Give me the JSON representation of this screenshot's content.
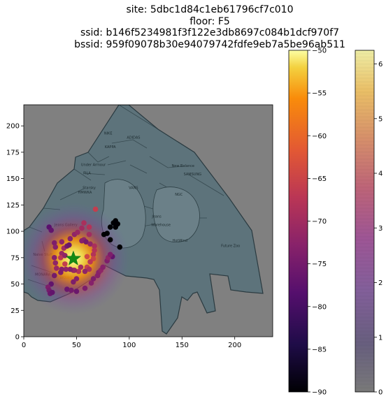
{
  "title_lines": [
    "site: 5dbc1d84c1eb61796cf7c010",
    "floor: F5",
    "ssid: b146f5234981f3f122e3db8697c084b1dcf970f7",
    "bssid: 959f09078b30e94079742fdfe9eb7a5be96ab511"
  ],
  "chart_data": {
    "type": "scatter",
    "xlim": [
      0,
      236
    ],
    "ylim": [
      0,
      220
    ],
    "xticks": [
      0,
      50,
      100,
      150,
      200
    ],
    "yticks": [
      0,
      25,
      50,
      75,
      100,
      125,
      150,
      175,
      200
    ],
    "grid": false,
    "estimated_position": {
      "x": 47,
      "y": 74,
      "marker": "star",
      "color": "#138a13"
    },
    "heatmap": {
      "center": [
        47,
        74
      ],
      "colormap": "inferno"
    },
    "points": [
      {
        "x": 24,
        "y": 104,
        "rssi": -78
      },
      {
        "x": 26,
        "y": 101,
        "rssi": -77
      },
      {
        "x": 29,
        "y": 89,
        "rssi": -74
      },
      {
        "x": 30,
        "y": 85,
        "rssi": -73
      },
      {
        "x": 29,
        "y": 75,
        "rssi": -73
      },
      {
        "x": 30,
        "y": 70,
        "rssi": -72
      },
      {
        "x": 31,
        "y": 65,
        "rssi": -71
      },
      {
        "x": 36,
        "y": 90,
        "rssi": -72
      },
      {
        "x": 38,
        "y": 84,
        "rssi": -70
      },
      {
        "x": 36,
        "y": 79,
        "rssi": -71
      },
      {
        "x": 35,
        "y": 75,
        "rssi": -67
      },
      {
        "x": 39,
        "y": 69,
        "rssi": -66
      },
      {
        "x": 41,
        "y": 86,
        "rssi": -75
      },
      {
        "x": 43,
        "y": 87,
        "rssi": -76
      },
      {
        "x": 44,
        "y": 93,
        "rssi": -73
      },
      {
        "x": 48,
        "y": 97,
        "rssi": -72
      },
      {
        "x": 51,
        "y": 99,
        "rssi": -71
      },
      {
        "x": 55,
        "y": 103,
        "rssi": -70
      },
      {
        "x": 57,
        "y": 108,
        "rssi": -69
      },
      {
        "x": 62,
        "y": 104,
        "rssi": -68
      },
      {
        "x": 68,
        "y": 121,
        "rssi": -66
      },
      {
        "x": 62,
        "y": 97,
        "rssi": -70
      },
      {
        "x": 57,
        "y": 92,
        "rssi": -72
      },
      {
        "x": 55,
        "y": 91,
        "rssi": -73
      },
      {
        "x": 59,
        "y": 90,
        "rssi": -75
      },
      {
        "x": 63,
        "y": 88,
        "rssi": -72
      },
      {
        "x": 67,
        "y": 86,
        "rssi": -69
      },
      {
        "x": 67,
        "y": 82,
        "rssi": -68
      },
      {
        "x": 66,
        "y": 78,
        "rssi": -68
      },
      {
        "x": 60,
        "y": 76,
        "rssi": -64
      },
      {
        "x": 66,
        "y": 74,
        "rssi": -65
      },
      {
        "x": 63,
        "y": 71,
        "rssi": -67
      },
      {
        "x": 60,
        "y": 66,
        "rssi": -66
      },
      {
        "x": 62,
        "y": 64,
        "rssi": -69
      },
      {
        "x": 58,
        "y": 62,
        "rssi": -72
      },
      {
        "x": 54,
        "y": 66,
        "rssi": -70
      },
      {
        "x": 52,
        "y": 62,
        "rssi": -68
      },
      {
        "x": 48,
        "y": 63,
        "rssi": -72
      },
      {
        "x": 47,
        "y": 63,
        "rssi": -71
      },
      {
        "x": 44,
        "y": 64,
        "rssi": -73
      },
      {
        "x": 40,
        "y": 64,
        "rssi": -72
      },
      {
        "x": 36,
        "y": 64,
        "rssi": -73
      },
      {
        "x": 35,
        "y": 61,
        "rssi": -74
      },
      {
        "x": 29,
        "y": 58,
        "rssi": -75
      },
      {
        "x": 26,
        "y": 50,
        "rssi": -77
      },
      {
        "x": 23,
        "y": 47,
        "rssi": -74
      },
      {
        "x": 24,
        "y": 44,
        "rssi": -75
      },
      {
        "x": 25,
        "y": 41,
        "rssi": -76
      },
      {
        "x": 27,
        "y": 42,
        "rssi": -77
      },
      {
        "x": 41,
        "y": 45,
        "rssi": -76
      },
      {
        "x": 45,
        "y": 44,
        "rssi": -75
      },
      {
        "x": 50,
        "y": 43,
        "rssi": -76
      },
      {
        "x": 58,
        "y": 46,
        "rssi": -74
      },
      {
        "x": 64,
        "y": 51,
        "rssi": -73
      },
      {
        "x": 66,
        "y": 55,
        "rssi": -74
      },
      {
        "x": 70,
        "y": 58,
        "rssi": -73
      },
      {
        "x": 71,
        "y": 61,
        "rssi": -73
      },
      {
        "x": 73,
        "y": 63,
        "rssi": -72
      },
      {
        "x": 75,
        "y": 66,
        "rssi": -73
      },
      {
        "x": 79,
        "y": 72,
        "rssi": -74
      },
      {
        "x": 84,
        "y": 76,
        "rssi": -77
      },
      {
        "x": 80,
        "y": 75,
        "rssi": -72
      },
      {
        "x": 82,
        "y": 78,
        "rssi": -74
      },
      {
        "x": 47,
        "y": 52,
        "rssi": -74
      },
      {
        "x": 50,
        "y": 55,
        "rssi": -73
      },
      {
        "x": 39,
        "y": 77,
        "rssi": -72
      },
      {
        "x": 76,
        "y": 97,
        "rssi": -90
      },
      {
        "x": 79,
        "y": 98,
        "rssi": -90
      },
      {
        "x": 82,
        "y": 104,
        "rssi": -90
      },
      {
        "x": 82,
        "y": 92,
        "rssi": -90
      },
      {
        "x": 85,
        "y": 108,
        "rssi": -90
      },
      {
        "x": 87,
        "y": 104,
        "rssi": -90
      },
      {
        "x": 89,
        "y": 107,
        "rssi": -90
      },
      {
        "x": 91,
        "y": 85,
        "rssi": -90
      },
      {
        "x": 87,
        "y": 110,
        "rssi": -90
      }
    ],
    "colorbars": [
      {
        "colormap": "inferno",
        "min": -90,
        "max": -50,
        "ticks": [
          -90,
          -85,
          -80,
          -75,
          -70,
          -65,
          -60,
          -55,
          -50
        ]
      },
      {
        "colormap": "inferno",
        "min": 0,
        "max": 6.25,
        "ticks": [
          0,
          1,
          2,
          3,
          4,
          5,
          6
        ]
      }
    ]
  },
  "map_labels": [
    {
      "text": "NIKE",
      "x": 80,
      "y": 192
    },
    {
      "text": "ADIDAS",
      "x": 104,
      "y": 188
    },
    {
      "text": "KAPPA",
      "x": 82,
      "y": 179
    },
    {
      "text": "Under Armour",
      "x": 66,
      "y": 162
    },
    {
      "text": "FILA",
      "x": 60,
      "y": 154
    },
    {
      "text": "VANS",
      "x": 104,
      "y": 140
    },
    {
      "text": "New Balance",
      "x": 151,
      "y": 161
    },
    {
      "text": "SAMSUNG",
      "x": 160,
      "y": 153
    },
    {
      "text": "Starsky",
      "x": 62,
      "y": 140
    },
    {
      "text": "HMWKA",
      "x": 58,
      "y": 136
    },
    {
      "text": "Jeans",
      "x": 126,
      "y": 113
    },
    {
      "text": "Warehouse",
      "x": 130,
      "y": 105
    },
    {
      "text": "NGC",
      "x": 147,
      "y": 134
    },
    {
      "text": "Future Zoo",
      "x": 196,
      "y": 85
    },
    {
      "text": "HotWind",
      "x": 148,
      "y": 90
    },
    {
      "text": "WOWO",
      "x": 40,
      "y": 55
    },
    {
      "text": "MONARA",
      "x": 18,
      "y": 58
    },
    {
      "text": "Naive Stuff",
      "x": 18,
      "y": 77
    },
    {
      "text": "Jeans Gallery",
      "x": 40,
      "y": 105
    }
  ]
}
